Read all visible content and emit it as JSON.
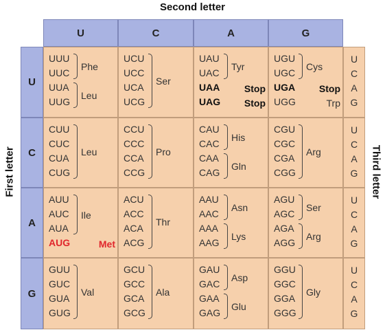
{
  "labels": {
    "second_letter": "Second letter",
    "first_letter": "First letter",
    "third_letter": "Third letter"
  },
  "bases": [
    "U",
    "C",
    "A",
    "G"
  ],
  "third_letters": [
    "U",
    "C",
    "A",
    "G"
  ],
  "colors": {
    "header_bg": "#a9b3e2",
    "cell_bg": "#f6d0ac",
    "start_codon": "#e0262c"
  },
  "grid": [
    [
      {
        "groups": [
          {
            "codons": [
              "UUU",
              "UUC"
            ],
            "aa": "Phe"
          },
          {
            "codons": [
              "UUA",
              "UUG"
            ],
            "aa": "Leu"
          }
        ]
      },
      {
        "groups": [
          {
            "codons": [
              "UCU",
              "UCC",
              "UCA",
              "UCG"
            ],
            "aa": "Ser"
          }
        ]
      },
      {
        "groups": [
          {
            "codons": [
              "UAU",
              "UAC"
            ],
            "aa": "Tyr"
          },
          {
            "codons": [
              "UAA"
            ],
            "aa": "Stop",
            "bold": true
          },
          {
            "codons": [
              "UAG"
            ],
            "aa": "Stop",
            "bold": true
          }
        ]
      },
      {
        "groups": [
          {
            "codons": [
              "UGU",
              "UGC"
            ],
            "aa": "Cys"
          },
          {
            "codons": [
              "UGA"
            ],
            "aa": "Stop",
            "bold": true
          },
          {
            "codons": [
              "UGG"
            ],
            "aa": "Trp"
          }
        ]
      }
    ],
    [
      {
        "groups": [
          {
            "codons": [
              "CUU",
              "CUC",
              "CUA",
              "CUG"
            ],
            "aa": "Leu"
          }
        ]
      },
      {
        "groups": [
          {
            "codons": [
              "CCU",
              "CCC",
              "CCA",
              "CCG"
            ],
            "aa": "Pro"
          }
        ]
      },
      {
        "groups": [
          {
            "codons": [
              "CAU",
              "CAC"
            ],
            "aa": "His"
          },
          {
            "codons": [
              "CAA",
              "CAG"
            ],
            "aa": "Gln"
          }
        ]
      },
      {
        "groups": [
          {
            "codons": [
              "CGU",
              "CGC",
              "CGA",
              "CGG"
            ],
            "aa": "Arg"
          }
        ]
      }
    ],
    [
      {
        "groups": [
          {
            "codons": [
              "AUU",
              "AUC",
              "AUA"
            ],
            "aa": "Ile"
          },
          {
            "codons": [
              "AUG"
            ],
            "aa": "Met",
            "red": true
          }
        ]
      },
      {
        "groups": [
          {
            "codons": [
              "ACU",
              "ACC",
              "ACA",
              "ACG"
            ],
            "aa": "Thr"
          }
        ]
      },
      {
        "groups": [
          {
            "codons": [
              "AAU",
              "AAC"
            ],
            "aa": "Asn"
          },
          {
            "codons": [
              "AAA",
              "AAG"
            ],
            "aa": "Lys"
          }
        ]
      },
      {
        "groups": [
          {
            "codons": [
              "AGU",
              "AGC"
            ],
            "aa": "Ser"
          },
          {
            "codons": [
              "AGA",
              "AGG"
            ],
            "aa": "Arg"
          }
        ]
      }
    ],
    [
      {
        "groups": [
          {
            "codons": [
              "GUU",
              "GUC",
              "GUA",
              "GUG"
            ],
            "aa": "Val"
          }
        ]
      },
      {
        "groups": [
          {
            "codons": [
              "GCU",
              "GCC",
              "GCA",
              "GCG"
            ],
            "aa": "Ala"
          }
        ]
      },
      {
        "groups": [
          {
            "codons": [
              "GAU",
              "GAC"
            ],
            "aa": "Asp"
          },
          {
            "codons": [
              "GAA",
              "GAG"
            ],
            "aa": "Glu"
          }
        ]
      },
      {
        "groups": [
          {
            "codons": [
              "GGU",
              "GGC",
              "GGA",
              "GGG"
            ],
            "aa": "Gly"
          }
        ]
      }
    ]
  ]
}
